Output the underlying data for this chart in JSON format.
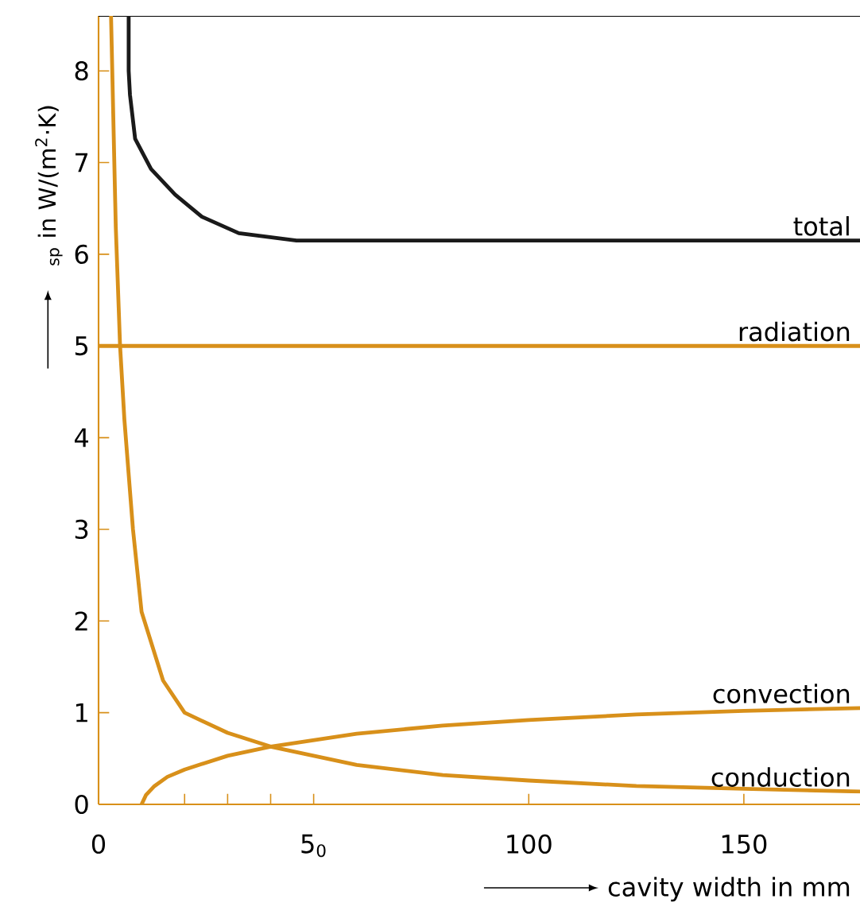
{
  "chart_data": {
    "type": "line",
    "ylabel": "$_{sp}$ in W/(m$^{2}$·K)",
    "xlabel": "cavity width in mm",
    "xlim": [
      0,
      177
    ],
    "ylim": [
      0,
      8.6
    ],
    "xticks": [
      0,
      {
        "value": 20,
        "label": null
      },
      {
        "value": 30,
        "label": null
      },
      {
        "value": 40,
        "label": null
      },
      {
        "value": 50,
        "label": "5$_{0}$"
      },
      100,
      150
    ],
    "yticks": [
      0,
      1,
      2,
      3,
      4,
      5,
      6,
      7,
      8
    ],
    "grid": false,
    "legend": false,
    "marker": "none",
    "line_style": "solid",
    "series": [
      {
        "name": "total",
        "color": "#1a1a1a",
        "x": [
          7,
          7,
          7.3,
          8.5,
          12.2,
          17.8,
          24,
          32.6,
          46,
          60,
          100,
          177
        ],
        "values": [
          8.6,
          8.0,
          7.74,
          7.26,
          6.93,
          6.65,
          6.41,
          6.23,
          6.15,
          6.15,
          6.15,
          6.15
        ]
      },
      {
        "name": "radiation",
        "color": "#d8901a",
        "x": [
          0,
          177
        ],
        "values": [
          5,
          5
        ]
      },
      {
        "name": "convection",
        "color": "#d8901a",
        "x": [
          10,
          11,
          13,
          16,
          20,
          30,
          40,
          60,
          80,
          100,
          125,
          150,
          177
        ],
        "values": [
          0,
          0.1,
          0.2,
          0.3,
          0.38,
          0.53,
          0.63,
          0.77,
          0.86,
          0.92,
          0.98,
          1.02,
          1.05
        ]
      },
      {
        "name": "conduction",
        "color": "#d8901a",
        "x": [
          2.9,
          4,
          5,
          6,
          8,
          10,
          15,
          20,
          30,
          40,
          60,
          80,
          100,
          125,
          150,
          177
        ],
        "values": [
          8.6,
          6.3,
          5.0,
          4.2,
          3.0,
          2.1,
          1.35,
          1.0,
          0.78,
          0.63,
          0.43,
          0.32,
          0.26,
          0.2,
          0.17,
          0.14
        ]
      }
    ]
  }
}
